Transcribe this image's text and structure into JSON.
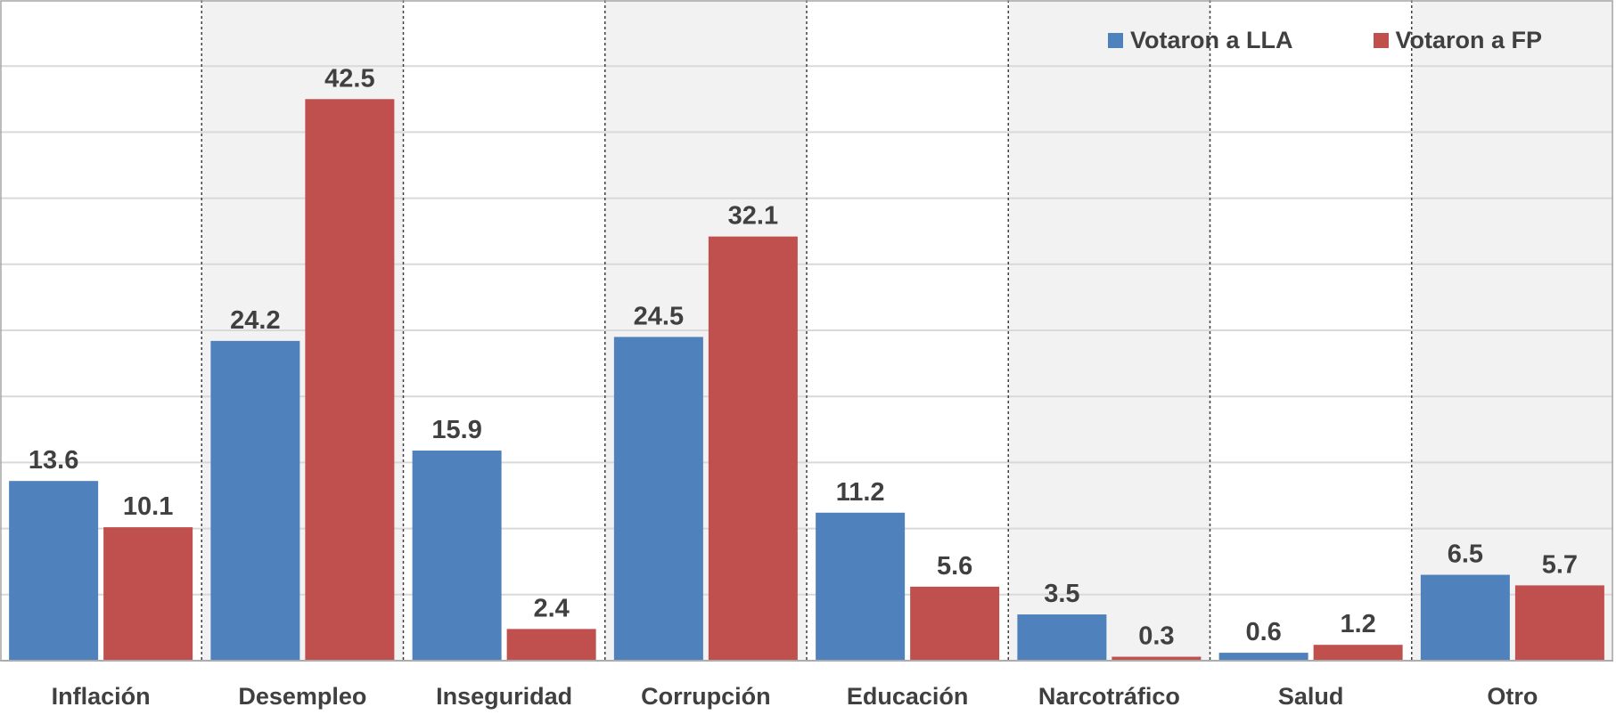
{
  "chart_data": {
    "type": "bar",
    "categories": [
      "Inflación",
      "Desempleo",
      "Inseguridad",
      "Corrupción",
      "Educación",
      "Narcotráfico",
      "Salud",
      "Otro"
    ],
    "series": [
      {
        "name": "Votaron a LLA",
        "color": "#4F81BD",
        "values": [
          13.6,
          24.2,
          15.9,
          24.5,
          11.2,
          3.5,
          0.6,
          6.5
        ]
      },
      {
        "name": "Votaron a FP",
        "color": "#C0504D",
        "values": [
          10.1,
          42.5,
          2.4,
          32.1,
          5.6,
          0.3,
          1.2,
          5.7
        ]
      }
    ],
    "ylim": [
      0,
      50
    ],
    "grid": true,
    "legend_position": "top-right",
    "title": "",
    "xlabel": "",
    "ylabel": ""
  }
}
